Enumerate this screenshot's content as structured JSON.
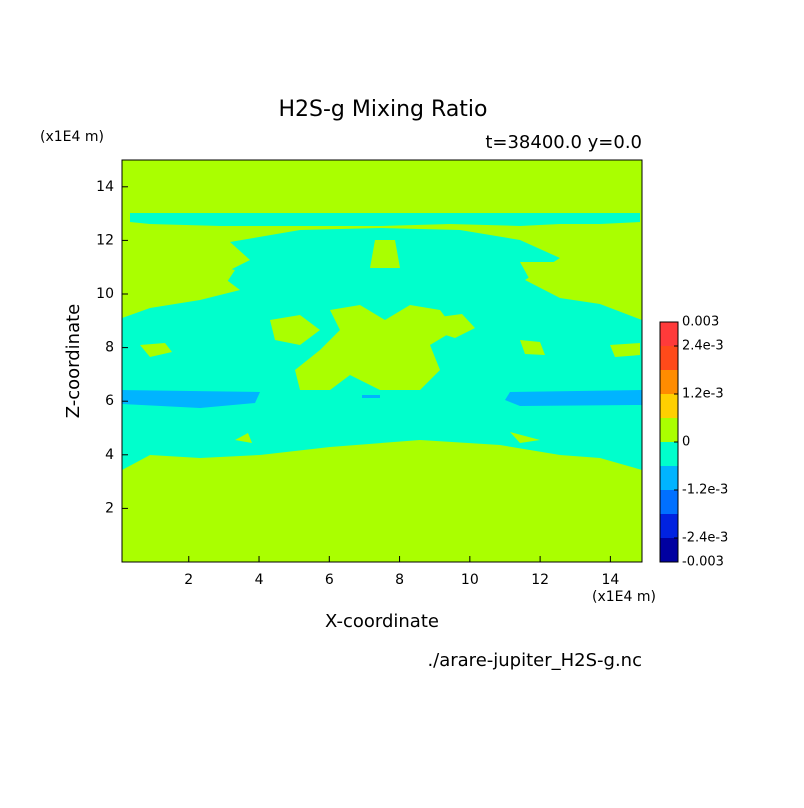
{
  "chart_data": {
    "type": "contour",
    "title": "H2S-g Mixing Ratio",
    "subtitle": "t=38400.0 y=0.0",
    "x_label": "X-coordinate",
    "y_label": "Z-coordinate",
    "x_unit": "(x1E4 m)",
    "y_unit": "(x1E4 m)",
    "source": "./arare-jupiter_H2S-g.nc",
    "xlim": [
      0.1,
      14.9
    ],
    "ylim": [
      0,
      15
    ],
    "xticks": [
      2,
      4,
      6,
      8,
      10,
      12,
      14
    ],
    "yticks": [
      2,
      4,
      6,
      8,
      10,
      12,
      14
    ],
    "levels": [
      -0.003,
      -0.0024,
      -0.0018,
      -0.0012,
      -0.0006,
      0,
      0.0006,
      0.0012,
      0.0018,
      0.0024,
      0.003
    ],
    "colors": [
      "#0000a0",
      "#0022e0",
      "#0070ff",
      "#00b4ff",
      "#00ffcc",
      "#aaff00",
      "#ffd000",
      "#ff8c00",
      "#ff4a1a",
      "#ff3a3a"
    ],
    "colorbar_ticks": [
      -0.003,
      {
        "value": -0.0024,
        "label": "-2.4e-3"
      },
      {
        "value": -0.0012,
        "label": "-1.2e-3"
      },
      0,
      {
        "value": 0.0012,
        "label": "1.2e-3"
      },
      {
        "value": 0.0024,
        "label": "2.4e-3"
      },
      0.003
    ]
  }
}
